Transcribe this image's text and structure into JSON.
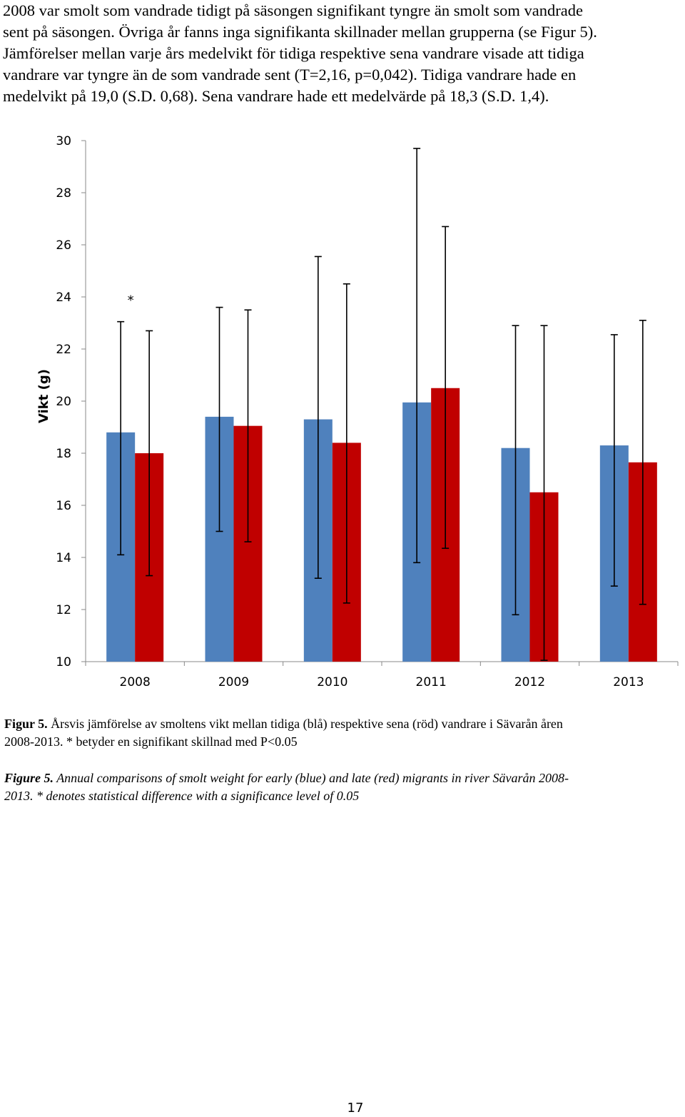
{
  "paragraph_lines": [
    "2008 var smolt som vandrade tidigt på säsongen signifikant tyngre än smolt som vandrade",
    "sent på säsongen. Övriga år fanns inga signifikanta skillnader mellan grupperna (se Figur 5).",
    "Jämförelser mellan varje års medelvikt för tidiga respektive sena vandrare visade att tidiga",
    "vandrare var tyngre än de som vandrade sent (T=2,16, p=0,042). Tidiga vandrare hade en",
    "medelvikt på 19,0 (S.D. 0,68). Sena vandrare hade ett medelvärde på 18,3 (S.D. 1,4)."
  ],
  "chart_data": {
    "type": "bar",
    "ylabel": "Vikt (g)",
    "ylim": [
      10,
      30
    ],
    "yticks": [
      10,
      12,
      14,
      16,
      18,
      20,
      22,
      24,
      26,
      28,
      30
    ],
    "grid": false,
    "categories": [
      "2008",
      "2009",
      "2010",
      "2011",
      "2012",
      "2013"
    ],
    "series": [
      {
        "color": "#4f81bd",
        "values": [
          18.8,
          19.4,
          19.3,
          19.95,
          18.2,
          18.3
        ],
        "err_low": [
          14.1,
          15.0,
          13.2,
          13.8,
          11.8,
          12.9
        ],
        "err_high": [
          23.05,
          23.6,
          25.55,
          29.7,
          22.9,
          22.55
        ]
      },
      {
        "color": "#c00000",
        "values": [
          18.0,
          19.05,
          18.4,
          20.5,
          16.5,
          17.65
        ],
        "err_low": [
          13.3,
          14.6,
          12.25,
          14.35,
          10.05,
          12.2
        ],
        "err_high": [
          22.7,
          23.5,
          24.5,
          26.7,
          22.9,
          23.1
        ]
      }
    ],
    "annotations": [
      {
        "text": "*",
        "category": "2008",
        "y": 24.1
      }
    ]
  },
  "caption_sv": {
    "label": "Figur 5.",
    "line1": " Årsvis jämförelse av smoltens vikt mellan tidiga (blå) respektive sena  (röd) vandrare i Sävarån åren",
    "line2": "2008-2013. * betyder en signifikant skillnad med P<0.05"
  },
  "caption_en": {
    "label": "Figure 5.",
    "line1": " Annual comparisons of  smolt weight for early (blue) and late (red) migrants in river Sävarån 2008-",
    "line2": "2013. * denotes statistical difference with a significance level of  0.05"
  },
  "page_number": "17"
}
